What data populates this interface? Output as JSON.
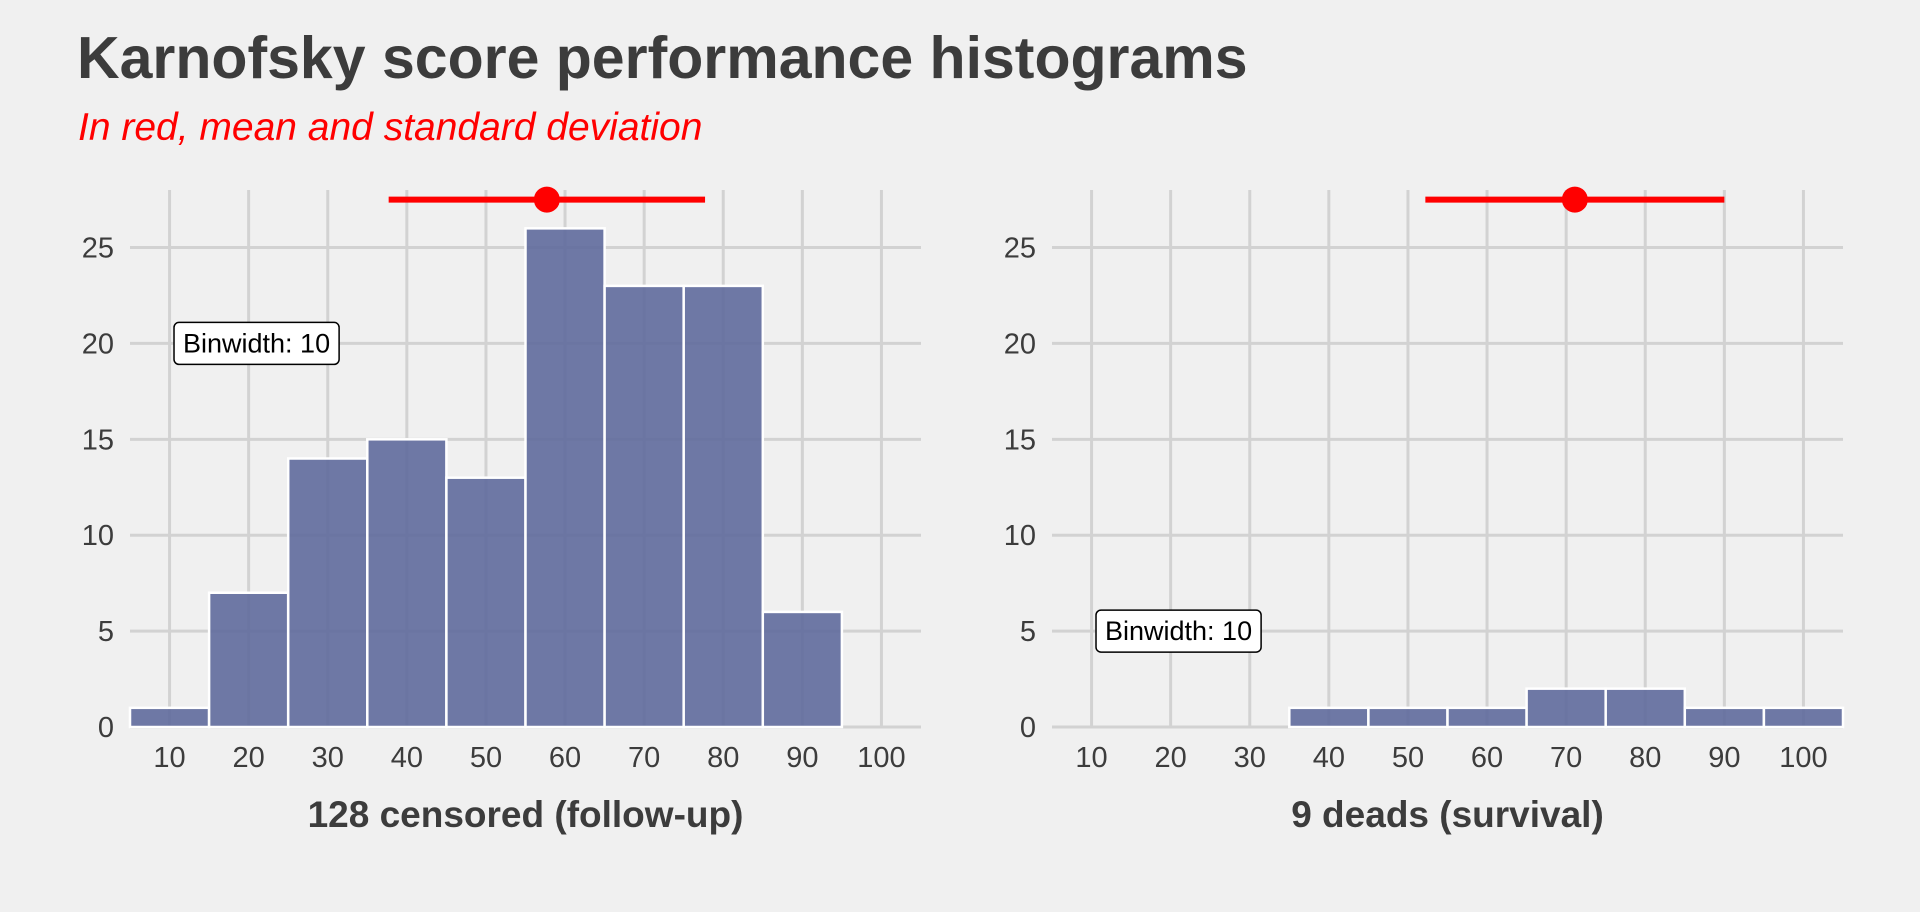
{
  "header": {
    "title": "Karnofsky score performance histograms",
    "subtitle": "In red, mean and standard deviation"
  },
  "colors": {
    "background": "#f0f0f0",
    "bar_fill": "#5f6a9c",
    "bar_stroke": "#ffffff",
    "grid": "#d2d2d2",
    "summary": "#ff0000",
    "text": "#3c3c3c"
  },
  "chart_data": [
    {
      "type": "bar",
      "xlabel": "128 censored (follow-up)",
      "ylabel": "",
      "binwidth": 10,
      "annotation": "Binwidth: 10",
      "xlim": [
        5,
        105
      ],
      "ylim": [
        0,
        28
      ],
      "x_ticks": [
        10,
        20,
        30,
        40,
        50,
        60,
        70,
        80,
        90,
        100
      ],
      "y_ticks": [
        0,
        5,
        10,
        15,
        20,
        25
      ],
      "bins": [
        {
          "center": 10,
          "count": 1
        },
        {
          "center": 20,
          "count": 7
        },
        {
          "center": 30,
          "count": 14
        },
        {
          "center": 40,
          "count": 15
        },
        {
          "center": 50,
          "count": 13
        },
        {
          "center": 60,
          "count": 26
        },
        {
          "center": 70,
          "count": 23
        },
        {
          "center": 80,
          "count": 23
        },
        {
          "center": 90,
          "count": 6
        },
        {
          "center": 100,
          "count": 0
        }
      ],
      "summary": {
        "mean": 57.7,
        "sd": 20.0,
        "y": 27.5
      },
      "annotation_pos": {
        "x": 21,
        "y": 20
      }
    },
    {
      "type": "bar",
      "xlabel": "9 deads (survival)",
      "ylabel": "",
      "binwidth": 10,
      "annotation": "Binwidth: 10",
      "xlim": [
        5,
        105
      ],
      "ylim": [
        0,
        28
      ],
      "x_ticks": [
        10,
        20,
        30,
        40,
        50,
        60,
        70,
        80,
        90,
        100
      ],
      "y_ticks": [
        0,
        5,
        10,
        15,
        20,
        25
      ],
      "bins": [
        {
          "center": 10,
          "count": 0
        },
        {
          "center": 20,
          "count": 0
        },
        {
          "center": 30,
          "count": 0
        },
        {
          "center": 40,
          "count": 1
        },
        {
          "center": 50,
          "count": 1
        },
        {
          "center": 60,
          "count": 1
        },
        {
          "center": 70,
          "count": 2
        },
        {
          "center": 80,
          "count": 2
        },
        {
          "center": 90,
          "count": 1
        },
        {
          "center": 100,
          "count": 1
        }
      ],
      "summary": {
        "mean": 71.1,
        "sd": 18.9,
        "y": 27.5
      },
      "annotation_pos": {
        "x": 21,
        "y": 5
      }
    }
  ]
}
